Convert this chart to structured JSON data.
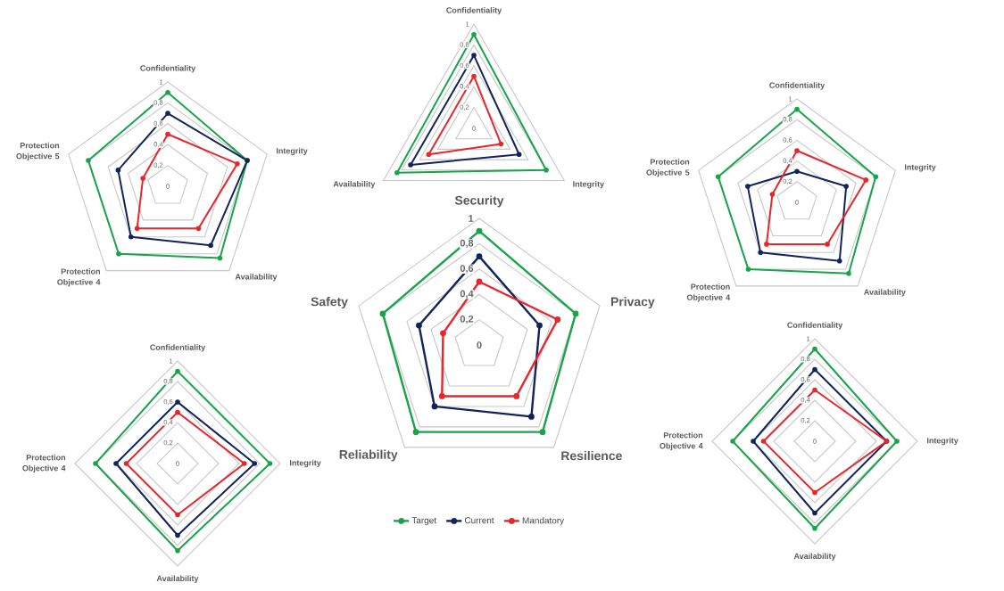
{
  "chart_data": [
    {
      "type": "radar",
      "categories": [
        "Confidentiality",
        "Integrity",
        "Availability",
        "Protection Objective 4",
        "Protection Objective 5"
      ],
      "ylim": [
        0,
        1
      ],
      "yticks": [
        0,
        {
          "value": 0.2,
          "label": "0,2"
        },
        {
          "value": 0.4,
          "label": "0,4"
        },
        {
          "value": 0.6,
          "label": "0,6"
        },
        {
          "value": 0.8,
          "label": "0,8"
        },
        1
      ],
      "grid": true,
      "marker": "circle",
      "line_style": "solid",
      "series": [
        {
          "color": "#1aa34a",
          "values": [
            0.9,
            0.8,
            0.85,
            0.8,
            0.8
          ]
        },
        {
          "color": "#13235b",
          "values": [
            0.7,
            0.8,
            0.7,
            0.6,
            0.5
          ]
        },
        {
          "color": "#e8262b",
          "values": [
            0.5,
            0.7,
            0.5,
            0.5,
            0.25
          ]
        }
      ]
    },
    {
      "type": "radar",
      "categories": [
        "Confidentiality",
        "Integrity",
        "Availability"
      ],
      "ylim": [
        0,
        1
      ],
      "yticks": [
        0,
        {
          "value": 0.2,
          "label": "0,2"
        },
        {
          "value": 0.4,
          "label": "0,4"
        },
        {
          "value": 0.6,
          "label": "0,6"
        },
        {
          "value": 0.8,
          "label": "0,8"
        },
        1
      ],
      "grid": true,
      "marker": "circle",
      "line_style": "solid",
      "series": [
        {
          "color": "#1aa34a",
          "values": [
            0.9,
            0.8,
            0.85
          ]
        },
        {
          "color": "#13235b",
          "values": [
            0.7,
            0.5,
            0.7
          ]
        },
        {
          "color": "#e8262b",
          "values": [
            0.5,
            0.3,
            0.5
          ]
        }
      ]
    },
    {
      "type": "radar",
      "categories": [
        "Confidentiality",
        "Integrity",
        "Availability",
        "Protection Objective 4",
        "Protection Objective 5"
      ],
      "ylim": [
        0,
        1
      ],
      "yticks": [
        0,
        {
          "value": 0.2,
          "label": "0,2"
        },
        {
          "value": 0.4,
          "label": "0,4"
        },
        {
          "value": 0.6,
          "label": "0,6"
        },
        {
          "value": 0.8,
          "label": "0,8"
        },
        1
      ],
      "grid": true,
      "marker": "circle",
      "line_style": "solid",
      "series": [
        {
          "color": "#1aa34a",
          "values": [
            0.9,
            0.8,
            0.85,
            0.8,
            0.8
          ]
        },
        {
          "color": "#13235b",
          "values": [
            0.3,
            0.5,
            0.7,
            0.6,
            0.5
          ]
        },
        {
          "color": "#e8262b",
          "values": [
            0.5,
            0.7,
            0.5,
            0.5,
            0.25
          ]
        }
      ]
    },
    {
      "type": "radar",
      "categories": [
        "Security",
        "Privacy",
        "Resilience",
        "Reliability",
        "Safety"
      ],
      "ylim": [
        0,
        1
      ],
      "yticks": [
        0,
        {
          "value": 0.2,
          "label": "0,2"
        },
        {
          "value": 0.4,
          "label": "0,4"
        },
        {
          "value": 0.6,
          "label": "0,6"
        },
        {
          "value": 0.8,
          "label": "0,8"
        },
        1
      ],
      "grid": true,
      "marker": "circle",
      "line_style": "solid",
      "legend": "bottom",
      "series": [
        {
          "name": "Target",
          "color": "#1aa34a",
          "values": [
            0.9,
            0.8,
            0.85,
            0.85,
            0.8
          ]
        },
        {
          "name": "Current",
          "color": "#13235b",
          "values": [
            0.7,
            0.5,
            0.7,
            0.6,
            0.5
          ]
        },
        {
          "name": "Mandatory",
          "color": "#e8262b",
          "values": [
            0.5,
            0.65,
            0.5,
            0.5,
            0.3
          ]
        }
      ]
    },
    {
      "type": "radar",
      "categories": [
        "Confidentiality",
        "Integrity",
        "Availability",
        "Protection Objective 4"
      ],
      "ylim": [
        0,
        1
      ],
      "yticks": [
        0,
        {
          "value": 0.2,
          "label": "0,2"
        },
        {
          "value": 0.4,
          "label": "0,4"
        },
        {
          "value": 0.6,
          "label": "0,6"
        },
        {
          "value": 0.8,
          "label": "0,8"
        },
        1
      ],
      "grid": true,
      "marker": "circle",
      "line_style": "solid",
      "series": [
        {
          "color": "#1aa34a",
          "values": [
            0.9,
            0.9,
            0.85,
            0.8
          ]
        },
        {
          "color": "#13235b",
          "values": [
            0.6,
            0.75,
            0.7,
            0.6
          ]
        },
        {
          "color": "#e8262b",
          "values": [
            0.5,
            0.65,
            0.5,
            0.5
          ]
        }
      ]
    },
    {
      "type": "radar",
      "categories": [
        "Confidentiality",
        "Integrity",
        "Availability",
        "Protection Objective 4"
      ],
      "ylim": [
        0,
        1
      ],
      "yticks": [
        0,
        {
          "value": 0.2,
          "label": "0,2"
        },
        {
          "value": 0.4,
          "label": "0,4"
        },
        {
          "value": 0.6,
          "label": "0,6"
        },
        {
          "value": 0.8,
          "label": "0,8"
        },
        1
      ],
      "grid": true,
      "marker": "circle",
      "line_style": "solid",
      "series": [
        {
          "color": "#1aa34a",
          "values": [
            0.9,
            0.8,
            0.85,
            0.8
          ]
        },
        {
          "color": "#13235b",
          "values": [
            0.7,
            0.7,
            0.7,
            0.6
          ]
        },
        {
          "color": "#e8262b",
          "values": [
            0.5,
            0.7,
            0.5,
            0.5
          ]
        }
      ]
    }
  ]
}
